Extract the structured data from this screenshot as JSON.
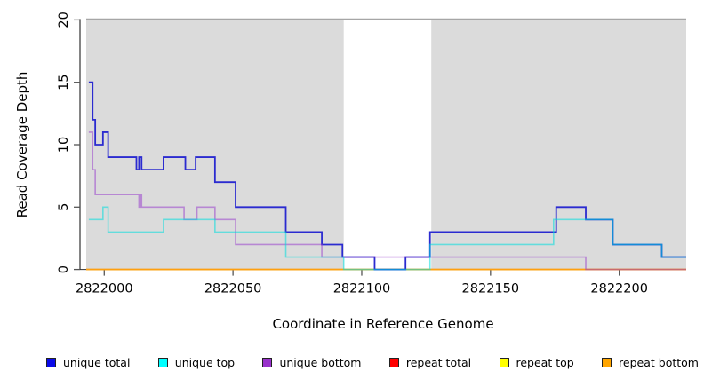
{
  "chart_data": {
    "type": "line",
    "step": true,
    "title": "",
    "xlabel": "Coordinate in Reference Genome",
    "ylabel": "Read Coverage Depth",
    "xlim": [
      2821993,
      2822226
    ],
    "ylim": [
      0,
      20
    ],
    "xticks": {
      "values": [
        2822000,
        2822050,
        2822100,
        2822150,
        2822200
      ],
      "labels": [
        "2822000",
        "2822050",
        "2822100",
        "2822150",
        "2822200"
      ]
    },
    "yticks": {
      "values": [
        0,
        5,
        10,
        15,
        20
      ],
      "labels": [
        "0",
        "5",
        "10",
        "15",
        "20"
      ]
    },
    "grid": false,
    "legend_position": "bottom",
    "shade_color": "#DBDBDB",
    "shaded_regions": [
      {
        "from": 2821993,
        "to": 2822093
      },
      {
        "from": 2822127,
        "to": 2822226
      }
    ],
    "series": [
      {
        "name": "unique total",
        "legend_color": "#0B0BE8",
        "line_color": "#2B2BD0",
        "width": 1.8,
        "z": 4,
        "steps": [
          [
            2821994,
            15
          ],
          [
            2821995.5,
            12
          ],
          [
            2821996.5,
            10
          ],
          [
            2821999.5,
            11
          ],
          [
            2822001.5,
            9
          ],
          [
            2822012.5,
            8
          ],
          [
            2822013.5,
            9
          ],
          [
            2822014.5,
            8
          ],
          [
            2822023,
            9
          ],
          [
            2822031.5,
            8
          ],
          [
            2822035.5,
            9
          ],
          [
            2822043,
            7
          ],
          [
            2822051,
            5
          ],
          [
            2822070.5,
            3
          ],
          [
            2822084.5,
            2
          ],
          [
            2822092.5,
            1
          ],
          [
            2822105,
            0
          ],
          [
            2822117,
            1
          ],
          [
            2822126.5,
            3
          ],
          [
            2822175.5,
            5
          ],
          [
            2822187,
            4
          ],
          [
            2822197.5,
            2
          ],
          [
            2822216.5,
            1
          ]
        ]
      },
      {
        "name": "unique top",
        "legend_color": "#00FFFF",
        "line_color": "rgba(0,220,220,0.55)",
        "width": 1.6,
        "z": 6,
        "steps": [
          [
            2821994,
            4
          ],
          [
            2821999.5,
            5
          ],
          [
            2822001.5,
            3
          ],
          [
            2822023,
            4
          ],
          [
            2822043,
            3
          ],
          [
            2822070.5,
            1
          ],
          [
            2822093,
            0
          ],
          [
            2822126.5,
            2
          ],
          [
            2822174.5,
            4
          ],
          [
            2822197.5,
            2
          ],
          [
            2822216.5,
            1
          ]
        ]
      },
      {
        "name": "unique bottom",
        "legend_color": "#9932CC",
        "line_color": "rgba(148,52,204,0.5)",
        "width": 1.6,
        "z": 5,
        "steps": [
          [
            2821994,
            11
          ],
          [
            2821995.5,
            8
          ],
          [
            2821996.5,
            6
          ],
          [
            2822013.5,
            5
          ],
          [
            2822014,
            6
          ],
          [
            2822014.5,
            5
          ],
          [
            2822031,
            4
          ],
          [
            2822036,
            5
          ],
          [
            2822043,
            4
          ],
          [
            2822051,
            2
          ],
          [
            2822084.5,
            1
          ],
          [
            2822187,
            0
          ]
        ]
      },
      {
        "name": "repeat total",
        "legend_color": "#FF0000",
        "line_color": "#E02020",
        "width": 1.4,
        "z": 1,
        "steps": [
          [
            2821993,
            0
          ]
        ]
      },
      {
        "name": "repeat top",
        "legend_color": "#FFFF00",
        "line_color": "#FFE800",
        "width": 1.4,
        "z": 2,
        "steps": [
          [
            2821993,
            0
          ]
        ]
      },
      {
        "name": "repeat bottom",
        "legend_color": "#FFA500",
        "line_color": "#FFA010",
        "width": 1.6,
        "z": 3,
        "steps": [
          [
            2821993,
            0
          ]
        ]
      }
    ]
  }
}
